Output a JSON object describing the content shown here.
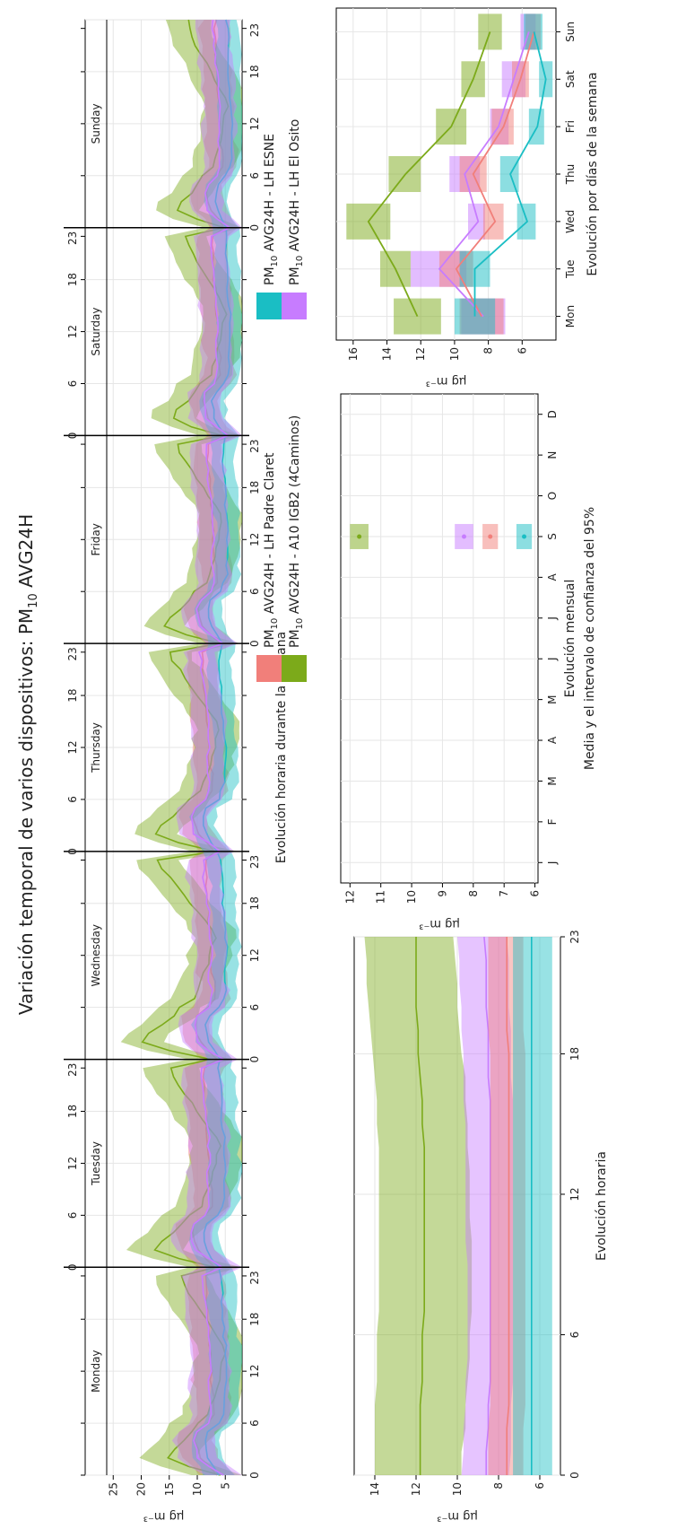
{
  "figure": {
    "title": "Variación temporal de varios dispositivos: PM",
    "title_sub": "10",
    "title_tail": " AVG24H",
    "ylabel": "µg m⁻³"
  },
  "legend": {
    "items": [
      {
        "prefix": "PM",
        "sub": "10",
        "text": " AVG24H - LH Padre Claret",
        "color": "#f17f7a"
      },
      {
        "prefix": "PM",
        "sub": "10",
        "text": " AVG24H - A10 IGB2 (4Caminos)",
        "color": "#7caa1a"
      },
      {
        "prefix": "PM",
        "sub": "10",
        "text": " AVG24H - LH ESNE",
        "color": "#1abec4"
      },
      {
        "prefix": "PM",
        "sub": "10",
        "text": " AVG24H - LH El Osito",
        "color": "#c77cff"
      }
    ]
  },
  "chart_data": [
    {
      "id": "weekly-hourly",
      "type": "area",
      "title": "",
      "xlabel": "Evolución horaria durante la semana",
      "ylabel": "µg m⁻³",
      "ylim": [
        2,
        30
      ],
      "yticks": [
        5,
        10,
        15,
        20,
        25
      ],
      "hour_ticks": [
        0,
        6,
        12,
        18,
        23
      ],
      "days": [
        "Monday",
        "Tuesday",
        "Wednesday",
        "Thursday",
        "Friday",
        "Saturday",
        "Sunday"
      ],
      "grid": true,
      "series": [
        {
          "name": "PM10 AVG24H - LH Padre Claret",
          "color": "#f17f7a",
          "profile": [
            [
              0,
              6.5
            ],
            [
              2,
              9.5
            ],
            [
              4,
              10.5
            ],
            [
              5,
              10
            ],
            [
              6,
              8
            ],
            [
              7,
              7
            ],
            [
              8,
              7
            ],
            [
              9,
              7
            ],
            [
              10,
              7.5
            ],
            [
              11,
              7.5
            ],
            [
              12,
              7.5
            ],
            [
              13,
              7.5
            ],
            [
              14,
              7.6
            ],
            [
              15,
              7.8
            ],
            [
              16,
              8
            ],
            [
              17,
              8
            ],
            [
              18,
              8.2
            ],
            [
              19,
              8.3
            ],
            [
              20,
              8.5
            ],
            [
              21,
              8.5
            ],
            [
              22,
              8.5
            ],
            [
              23,
              8.5
            ],
            [
              24,
              8.4
            ]
          ],
          "band": 2.2
        },
        {
          "name": "PM10 AVG24H - A10 IGB2 (4Caminos)",
          "color": "#7caa1a",
          "profile": [
            [
              0,
              6
            ],
            [
              1,
              12
            ],
            [
              2,
              16
            ],
            [
              3,
              15
            ],
            [
              4,
              13
            ],
            [
              5,
              11.5
            ],
            [
              6,
              10.5
            ],
            [
              7,
              8.5
            ],
            [
              8,
              8
            ],
            [
              9,
              7.5
            ],
            [
              10,
              7
            ],
            [
              11,
              6.5
            ],
            [
              12,
              6.2
            ],
            [
              13,
              6
            ],
            [
              14,
              5.5
            ],
            [
              15,
              6
            ],
            [
              16,
              7
            ],
            [
              17,
              8
            ],
            [
              18,
              9
            ],
            [
              19,
              10
            ],
            [
              20,
              11
            ],
            [
              21,
              12
            ],
            [
              22,
              13
            ],
            [
              23,
              13.5
            ],
            [
              24,
              13.5
            ]
          ],
          "band": 3.5
        },
        {
          "name": "PM10 AVG24H - LH ESNE",
          "color": "#1abec4",
          "profile": [
            [
              0,
              6
            ],
            [
              2,
              8
            ],
            [
              4,
              8.5
            ],
            [
              5,
              8
            ],
            [
              6,
              6
            ],
            [
              7,
              5.5
            ],
            [
              8,
              5
            ],
            [
              9,
              5
            ],
            [
              10,
              5
            ],
            [
              11,
              4.8
            ],
            [
              12,
              4.8
            ],
            [
              13,
              4.8
            ],
            [
              14,
              4.9
            ],
            [
              15,
              5
            ],
            [
              16,
              5.2
            ],
            [
              17,
              5.3
            ],
            [
              18,
              5.4
            ],
            [
              19,
              5.5
            ],
            [
              20,
              5.5
            ],
            [
              21,
              5.6
            ],
            [
              22,
              5.7
            ],
            [
              23,
              5.8
            ],
            [
              24,
              5.9
            ]
          ],
          "band": 1.8
        },
        {
          "name": "PM10 AVG24H - LH El Osito",
          "color": "#c77cff",
          "profile": [
            [
              0,
              5.5
            ],
            [
              2,
              10
            ],
            [
              4,
              10.5
            ],
            [
              5,
              10
            ],
            [
              6,
              8
            ],
            [
              7,
              7.5
            ],
            [
              8,
              7.5
            ],
            [
              9,
              7.8
            ],
            [
              10,
              8
            ],
            [
              11,
              7.8
            ],
            [
              12,
              7.5
            ],
            [
              13,
              7.5
            ],
            [
              14,
              7.6
            ],
            [
              15,
              7.6
            ],
            [
              16,
              7.8
            ],
            [
              17,
              8
            ],
            [
              18,
              8.2
            ],
            [
              19,
              8.5
            ],
            [
              20,
              8.6
            ],
            [
              21,
              8.8
            ],
            [
              22,
              8.9
            ],
            [
              23,
              9
            ],
            [
              24,
              9
            ]
          ],
          "band": 2.5
        }
      ]
    },
    {
      "id": "hourly",
      "type": "area",
      "title": "",
      "xlabel": "Evolución horaria",
      "ylabel": "µg m⁻³",
      "ylim": [
        5,
        15
      ],
      "yticks": [
        6,
        8,
        10,
        12,
        14
      ],
      "x": [
        0,
        1,
        2,
        3,
        4,
        5,
        6,
        7,
        8,
        9,
        10,
        11,
        12,
        13,
        14,
        15,
        16,
        17,
        18,
        19,
        20,
        21,
        22,
        23
      ],
      "xticks": [
        0,
        6,
        12,
        18,
        23
      ],
      "grid": true,
      "series": [
        {
          "name": "PM10 AVG24H - A10 IGB2 (4Caminos)",
          "color": "#7caa1a",
          "mean": [
            11.8,
            11.8,
            11.8,
            11.8,
            11.7,
            11.7,
            11.7,
            11.6,
            11.6,
            11.6,
            11.6,
            11.6,
            11.6,
            11.6,
            11.6,
            11.7,
            11.7,
            11.8,
            11.9,
            11.9,
            12.0,
            12.0,
            12.0,
            12.0
          ],
          "lower": [
            9.8,
            9.8,
            9.6,
            9.6,
            9.5,
            9.4,
            9.4,
            9.3,
            9.3,
            9.3,
            9.3,
            9.4,
            9.4,
            9.4,
            9.5,
            9.5,
            9.6,
            9.6,
            9.8,
            9.9,
            10.0,
            10.0,
            10.1,
            10.2
          ],
          "upper": [
            14.0,
            14.0,
            14.0,
            14.0,
            13.9,
            13.9,
            13.9,
            13.8,
            13.8,
            13.8,
            13.8,
            13.8,
            13.8,
            13.8,
            13.8,
            13.9,
            13.9,
            14.0,
            14.1,
            14.2,
            14.3,
            14.4,
            14.4,
            14.5
          ]
        },
        {
          "name": "PM10 AVG24H - LH El Osito",
          "color": "#c77cff",
          "mean": [
            8.6,
            8.6,
            8.5,
            8.5,
            8.4,
            8.4,
            8.4,
            8.4,
            8.4,
            8.4,
            8.4,
            8.4,
            8.4,
            8.4,
            8.4,
            8.4,
            8.4,
            8.5,
            8.5,
            8.5,
            8.6,
            8.6,
            8.6,
            8.7
          ],
          "lower": [
            7.5,
            7.4,
            7.4,
            7.4,
            7.3,
            7.3,
            7.3,
            7.3,
            7.3,
            7.3,
            7.3,
            7.3,
            7.3,
            7.3,
            7.3,
            7.3,
            7.3,
            7.4,
            7.4,
            7.4,
            7.5,
            7.5,
            7.5,
            7.6
          ],
          "upper": [
            9.8,
            9.7,
            9.7,
            9.6,
            9.6,
            9.5,
            9.5,
            9.5,
            9.5,
            9.5,
            9.6,
            9.6,
            9.6,
            9.6,
            9.6,
            9.6,
            9.7,
            9.7,
            9.7,
            9.8,
            9.8,
            9.9,
            9.9,
            10.0
          ]
        },
        {
          "name": "PM10 AVG24H - LH Padre Claret",
          "color": "#f17f7a",
          "mean": [
            7.6,
            7.6,
            7.6,
            7.5,
            7.5,
            7.5,
            7.5,
            7.5,
            7.5,
            7.5,
            7.5,
            7.5,
            7.5,
            7.5,
            7.5,
            7.5,
            7.5,
            7.5,
            7.5,
            7.6,
            7.6,
            7.6,
            7.6,
            7.6
          ],
          "lower": [
            6.8,
            6.8,
            6.8,
            6.7,
            6.7,
            6.7,
            6.7,
            6.7,
            6.7,
            6.7,
            6.7,
            6.7,
            6.7,
            6.7,
            6.7,
            6.7,
            6.7,
            6.7,
            6.7,
            6.8,
            6.8,
            6.8,
            6.8,
            6.8
          ],
          "upper": [
            8.5,
            8.5,
            8.5,
            8.4,
            8.4,
            8.4,
            8.4,
            8.4,
            8.4,
            8.4,
            8.4,
            8.4,
            8.4,
            8.4,
            8.4,
            8.4,
            8.4,
            8.4,
            8.4,
            8.5,
            8.5,
            8.5,
            8.5,
            8.5
          ]
        },
        {
          "name": "PM10 AVG24H - LH ESNE",
          "color": "#1abec4",
          "mean": [
            6.4,
            6.4,
            6.4,
            6.4,
            6.4,
            6.4,
            6.4,
            6.4,
            6.4,
            6.4,
            6.4,
            6.4,
            6.4,
            6.4,
            6.4,
            6.4,
            6.4,
            6.4,
            6.4,
            6.4,
            6.4,
            6.4,
            6.4,
            6.4
          ],
          "lower": [
            5.4,
            5.4,
            5.4,
            5.4,
            5.4,
            5.4,
            5.4,
            5.4,
            5.4,
            5.4,
            5.4,
            5.4,
            5.4,
            5.4,
            5.4,
            5.4,
            5.4,
            5.4,
            5.4,
            5.4,
            5.4,
            5.4,
            5.4,
            5.4
          ],
          "upper": [
            7.3,
            7.3,
            7.3,
            7.3,
            7.3,
            7.3,
            7.3,
            7.3,
            7.3,
            7.3,
            7.3,
            7.3,
            7.3,
            7.3,
            7.3,
            7.3,
            7.3,
            7.3,
            7.3,
            7.3,
            7.3,
            7.3,
            7.3,
            7.3
          ]
        }
      ]
    },
    {
      "id": "monthly",
      "type": "scatter",
      "title": "",
      "xlabel": "Evolución mensual",
      "caption": "Media y el intervalo de confianza del 95%",
      "ylabel": "µg m⁻³",
      "ylim": [
        5.9,
        12.3
      ],
      "yticks": [
        6,
        7,
        8,
        9,
        10,
        11,
        12
      ],
      "categories": [
        "J",
        "F",
        "M",
        "A",
        "M",
        "J",
        "J",
        "A",
        "S",
        "O",
        "N",
        "D"
      ],
      "grid": true,
      "series": [
        {
          "name": "PM10 AVG24H - A10 IGB2 (4Caminos)",
          "color": "#7caa1a",
          "month": 8,
          "mean": 11.7,
          "lower": 11.4,
          "upper": 12.0
        },
        {
          "name": "PM10 AVG24H - LH El Osito",
          "color": "#c77cff",
          "month": 8,
          "mean": 8.3,
          "lower": 8.0,
          "upper": 8.6
        },
        {
          "name": "PM10 AVG24H - LH Padre Claret",
          "color": "#f17f7a",
          "month": 8,
          "mean": 7.45,
          "lower": 7.2,
          "upper": 7.7
        },
        {
          "name": "PM10 AVG24H - LH ESNE",
          "color": "#1abec4",
          "month": 8,
          "mean": 6.35,
          "lower": 6.1,
          "upper": 6.6
        }
      ]
    },
    {
      "id": "weekday",
      "type": "line",
      "title": "",
      "xlabel": "Evolución por días de la semana",
      "ylabel": "µg m⁻³",
      "ylim": [
        4,
        17
      ],
      "yticks": [
        6,
        8,
        10,
        12,
        14,
        16
      ],
      "categories": [
        "Mon",
        "Tue",
        "Wed",
        "Thu",
        "Fri",
        "Sat",
        "Sun"
      ],
      "grid": true,
      "series": [
        {
          "name": "PM10 AVG24H - A10 IGB2 (4Caminos)",
          "color": "#7caa1a",
          "mean": [
            12.2,
            13.5,
            15.1,
            12.9,
            10.2,
            8.9,
            7.9
          ],
          "lower": [
            10.8,
            12.6,
            13.8,
            12.0,
            9.3,
            8.2,
            7.2
          ],
          "upper": [
            13.6,
            14.4,
            16.4,
            13.9,
            11.1,
            9.6,
            8.6
          ]
        },
        {
          "name": "PM10 AVG24H - LH El Osito",
          "color": "#c77cff",
          "mean": [
            8.3,
            10.9,
            8.6,
            9.4,
            7.4,
            6.5,
            5.6
          ],
          "lower": [
            7.0,
            9.3,
            8.2,
            8.5,
            6.8,
            5.8,
            5.2
          ],
          "upper": [
            9.6,
            12.6,
            9.2,
            10.3,
            7.9,
            7.2,
            6.1
          ]
        },
        {
          "name": "PM10 AVG24H - LH Padre Claret",
          "color": "#f17f7a",
          "mean": [
            8.4,
            9.9,
            7.6,
            8.9,
            7.1,
            6.1,
            5.3
          ],
          "lower": [
            7.1,
            8.9,
            7.1,
            8.1,
            6.5,
            5.6,
            4.9
          ],
          "upper": [
            9.7,
            10.9,
            8.3,
            9.7,
            7.8,
            6.6,
            5.8
          ]
        },
        {
          "name": "PM10 AVG24H - LH ESNE",
          "color": "#1abec4",
          "mean": [
            8.8,
            8.8,
            5.7,
            6.7,
            5.1,
            4.6,
            5.3
          ],
          "lower": [
            7.6,
            7.9,
            5.2,
            6.2,
            4.7,
            4.2,
            4.8
          ],
          "upper": [
            10.0,
            9.7,
            6.3,
            7.3,
            5.6,
            5.0,
            5.9
          ]
        }
      ]
    }
  ]
}
